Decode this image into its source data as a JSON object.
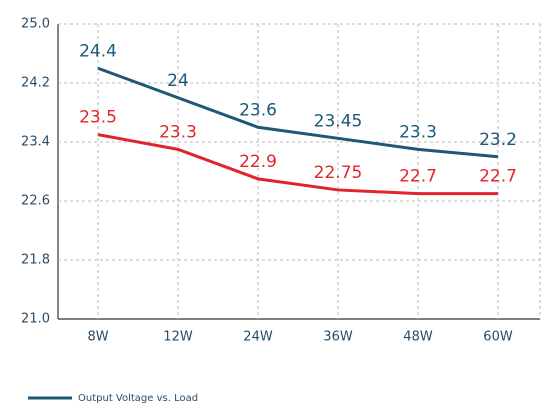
{
  "chart_data": {
    "type": "line",
    "categories": [
      "8W",
      "12W",
      "24W",
      "36W",
      "48W",
      "60W"
    ],
    "series": [
      {
        "name": "Output Voltage vs. Load",
        "color": "#1d5878",
        "values": [
          24.4,
          24,
          23.6,
          23.45,
          23.3,
          23.2
        ]
      },
      {
        "color": "#e0242e",
        "values": [
          23.5,
          23.3,
          22.9,
          22.75,
          22.7,
          22.7
        ]
      }
    ],
    "ylim": [
      21.0,
      25.0
    ],
    "yticks": [
      {
        "value": 21.0,
        "label": "21.0"
      },
      21.8,
      22.6,
      23.4,
      24.2,
      {
        "value": 25.0,
        "label": "25.0"
      }
    ],
    "grid": true,
    "legend": "bottom"
  }
}
